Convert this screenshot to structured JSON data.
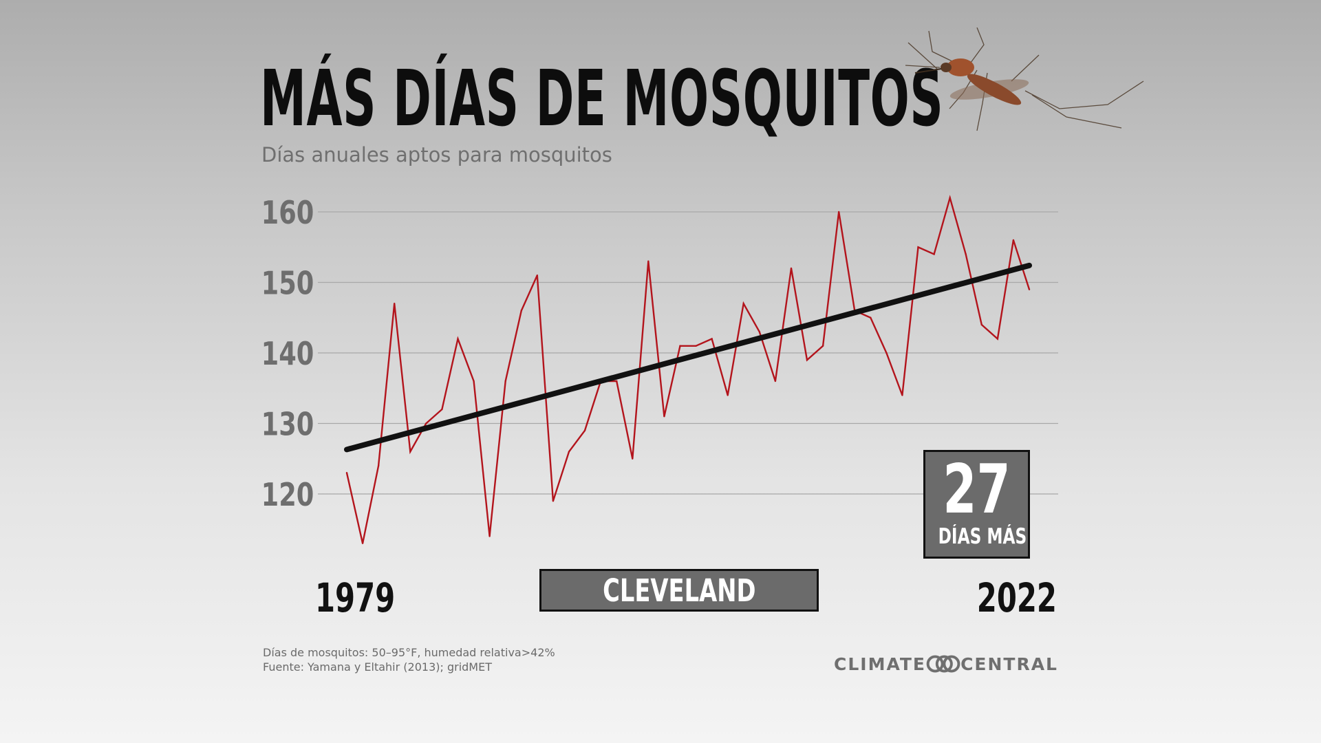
{
  "title": "MÁS DÍAS DE MOSQUITOS",
  "subtitle": "Días anuales aptos para mosquitos",
  "start_year": "1979",
  "end_year": "2022",
  "city": "CLEVELAND",
  "increase": {
    "value": "27",
    "label": "DÍAS MÁS"
  },
  "notes": [
    "Días de mosquitos: 50–95°F, humedad relativa>42%",
    "Fuente: Yamana y Eltahir (2013); gridMET"
  ],
  "logo": {
    "left": "CLIMATE",
    "right": "CENTRAL"
  },
  "colors": {
    "series": "#b3141c",
    "trend": "#111111",
    "grid": "#a8a8a8",
    "tick": "#6e6e6e"
  },
  "chart_data": {
    "type": "line",
    "title": "MÁS DÍAS DE MOSQUITOS",
    "subtitle": "Días anuales aptos para mosquitos",
    "xlabel": "",
    "ylabel": "",
    "x": [
      1979,
      1980,
      1981,
      1982,
      1983,
      1984,
      1985,
      1986,
      1987,
      1988,
      1989,
      1990,
      1991,
      1992,
      1993,
      1994,
      1995,
      1996,
      1997,
      1998,
      1999,
      2000,
      2001,
      2002,
      2003,
      2004,
      2005,
      2006,
      2007,
      2008,
      2009,
      2010,
      2011,
      2012,
      2013,
      2014,
      2015,
      2016,
      2017,
      2018,
      2019,
      2020,
      2021,
      2022
    ],
    "series": [
      {
        "values": [
          123,
          113,
          124,
          147,
          126,
          130,
          132,
          142,
          136,
          114,
          136,
          146,
          151,
          119,
          126,
          129,
          136,
          136,
          125,
          153,
          131,
          141,
          141,
          142,
          134,
          147,
          143,
          136,
          152,
          139,
          141,
          160,
          146,
          145,
          140,
          134,
          155,
          154,
          162,
          154,
          144,
          142,
          156,
          149
        ]
      }
    ],
    "trend": {
      "start": 126.3,
      "end": 152.4
    },
    "yticks": [
      120,
      130,
      140,
      150,
      160
    ],
    "ylim": [
      110,
      163
    ],
    "grid": true,
    "legend": "none"
  }
}
